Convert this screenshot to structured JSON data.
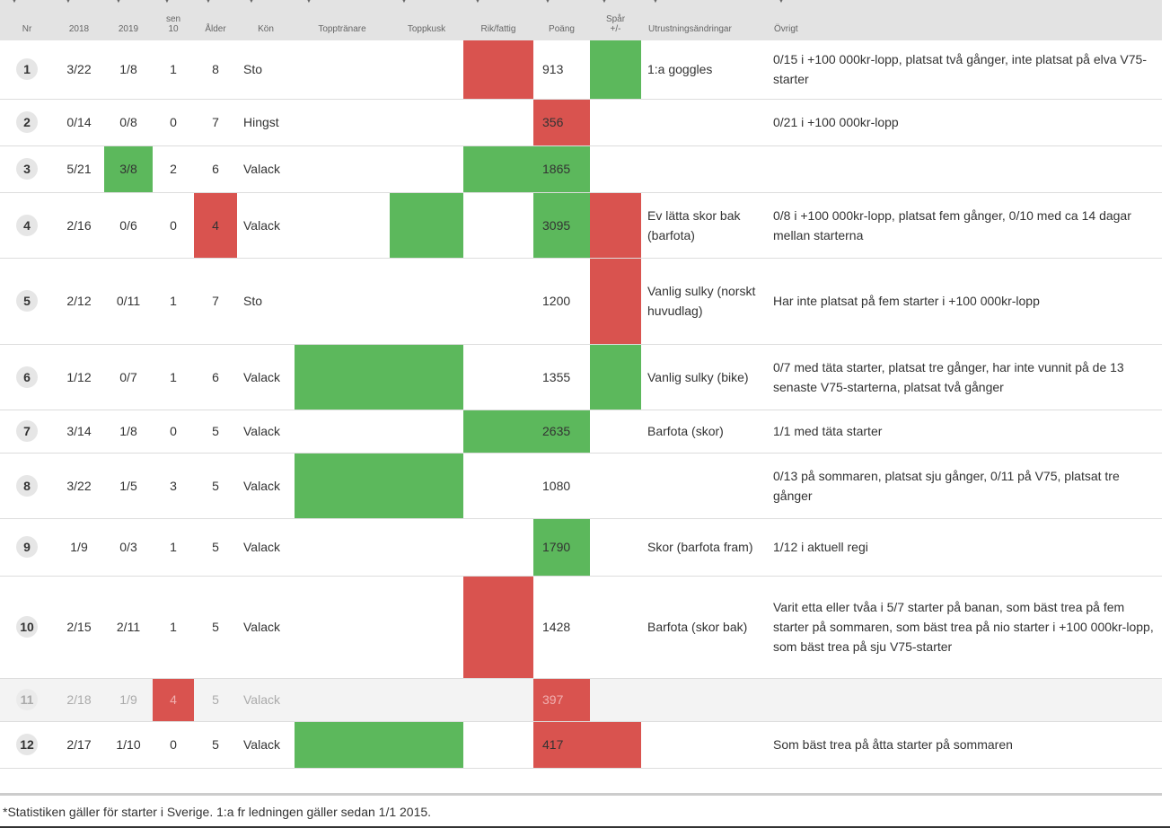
{
  "headers": [
    {
      "label": "Nr",
      "align": "center"
    },
    {
      "label": "2018",
      "align": "center"
    },
    {
      "label": "2019",
      "align": "center"
    },
    {
      "label": "Senaste\nsen\n10",
      "label_visible": "sen\n10",
      "align": "center"
    },
    {
      "label": "Ålder",
      "align": "center"
    },
    {
      "label": "Kön",
      "align": "center"
    },
    {
      "label": "Topptränare",
      "align": "center"
    },
    {
      "label": "Toppkusk",
      "align": "center"
    },
    {
      "label": "Rik/fattig",
      "align": "center"
    },
    {
      "label": "Poäng",
      "align": "center"
    },
    {
      "label": "Spår\n+/-",
      "align": "center"
    },
    {
      "label": "Utrustningsändringar",
      "align": "left"
    },
    {
      "label": "Övrigt",
      "align": "left"
    }
  ],
  "colors": {
    "green": "#5cb85c",
    "red": "#d9534f",
    "header_bg": "#e3e3e3"
  },
  "rows": [
    {
      "nr": "1",
      "y2018": "3/22",
      "y2019": "1/8",
      "sen10": "1",
      "alder": "8",
      "kon": "Sto",
      "poang": "913",
      "utrustning": "1:a goggles",
      "ovrigt": "0/15 i +100 000kr-lopp, platsat två gånger, inte platsat på elva V75-starter",
      "hl": {
        "rik": "r",
        "spar": "g"
      },
      "scratched": false
    },
    {
      "nr": "2",
      "y2018": "0/14",
      "y2019": "0/8",
      "sen10": "0",
      "alder": "7",
      "kon": "Hingst",
      "poang": "356",
      "utrustning": "",
      "ovrigt": "0/21 i +100 000kr-lopp",
      "hl": {
        "poang": "r"
      },
      "scratched": false
    },
    {
      "nr": "3",
      "y2018": "5/21",
      "y2019": "3/8",
      "sen10": "2",
      "alder": "6",
      "kon": "Valack",
      "poang": "1865",
      "utrustning": "",
      "ovrigt": "",
      "hl": {
        "y2019": "g",
        "rik": "g",
        "poang": "g"
      },
      "scratched": false
    },
    {
      "nr": "4",
      "y2018": "2/16",
      "y2019": "0/6",
      "sen10": "0",
      "alder": "4",
      "kon": "Valack",
      "poang": "3095",
      "utrustning": "Ev lätta skor bak (barfota)",
      "ovrigt": "0/8 i +100 000kr-lopp, platsat fem gånger, 0/10 med ca 14 dagar mellan starterna",
      "hl": {
        "alder": "r",
        "kusk": "g",
        "poang": "g",
        "spar": "r"
      },
      "scratched": false
    },
    {
      "nr": "5",
      "y2018": "2/12",
      "y2019": "0/11",
      "sen10": "1",
      "alder": "7",
      "kon": "Sto",
      "poang": "1200",
      "utrustning": "Vanlig sulky (norskt huvudlag)",
      "ovrigt": "Har inte platsat på fem starter i +100 000kr-lopp",
      "hl": {
        "spar": "r"
      },
      "scratched": false
    },
    {
      "nr": "6",
      "y2018": "1/12",
      "y2019": "0/7",
      "sen10": "1",
      "alder": "6",
      "kon": "Valack",
      "poang": "1355",
      "utrustning": "Vanlig sulky (bike)",
      "ovrigt": "0/7 med täta starter, platsat tre gånger, har inte vunnit på de 13 senaste V75-starterna, platsat två gånger",
      "hl": {
        "tranare": "g",
        "kusk": "g",
        "spar": "g"
      },
      "scratched": false
    },
    {
      "nr": "7",
      "y2018": "3/14",
      "y2019": "1/8",
      "sen10": "0",
      "alder": "5",
      "kon": "Valack",
      "poang": "2635",
      "utrustning": "Barfota (skor)",
      "ovrigt": "1/1 med täta starter",
      "hl": {
        "rik": "g",
        "poang": "g"
      },
      "scratched": false
    },
    {
      "nr": "8",
      "y2018": "3/22",
      "y2019": "1/5",
      "sen10": "3",
      "alder": "5",
      "kon": "Valack",
      "poang": "1080",
      "utrustning": "",
      "ovrigt": "0/13 på sommaren, platsat sju gånger, 0/11 på V75, platsat tre gånger",
      "hl": {
        "tranare": "g",
        "kusk": "g"
      },
      "scratched": false
    },
    {
      "nr": "9",
      "y2018": "1/9",
      "y2019": "0/3",
      "sen10": "1",
      "alder": "5",
      "kon": "Valack",
      "poang": "1790",
      "utrustning": "Skor (barfota fram)",
      "ovrigt": "1/12 i aktuell regi",
      "hl": {
        "poang": "g"
      },
      "scratched": false
    },
    {
      "nr": "10",
      "y2018": "2/15",
      "y2019": "2/11",
      "sen10": "1",
      "alder": "5",
      "kon": "Valack",
      "poang": "1428",
      "utrustning": "Barfota (skor bak)",
      "ovrigt": "Varit etta eller tvåa i 5/7 starter på banan, som bäst trea på fem starter på sommaren, som bäst trea på nio starter i +100 000kr-lopp, som bäst trea på sju V75-starter",
      "hl": {
        "rik": "r"
      },
      "scratched": false
    },
    {
      "nr": "11",
      "y2018": "2/18",
      "y2019": "1/9",
      "sen10": "4",
      "alder": "5",
      "kon": "Valack",
      "poang": "397",
      "utrustning": "",
      "ovrigt": "",
      "hl": {
        "sen10": "r",
        "poang": "r"
      },
      "scratched": true
    },
    {
      "nr": "12",
      "y2018": "2/17",
      "y2019": "1/10",
      "sen10": "0",
      "alder": "5",
      "kon": "Valack",
      "poang": "417",
      "utrustning": "",
      "ovrigt": "Som bäst trea på åtta starter på sommaren",
      "hl": {
        "tranare": "g",
        "kusk": "g",
        "poang": "r",
        "spar": "r"
      },
      "scratched": false
    }
  ],
  "footnote": "*Statistiken gäller för starter i Sverige. 1:a fr ledningen gäller sedan 1/1 2015."
}
